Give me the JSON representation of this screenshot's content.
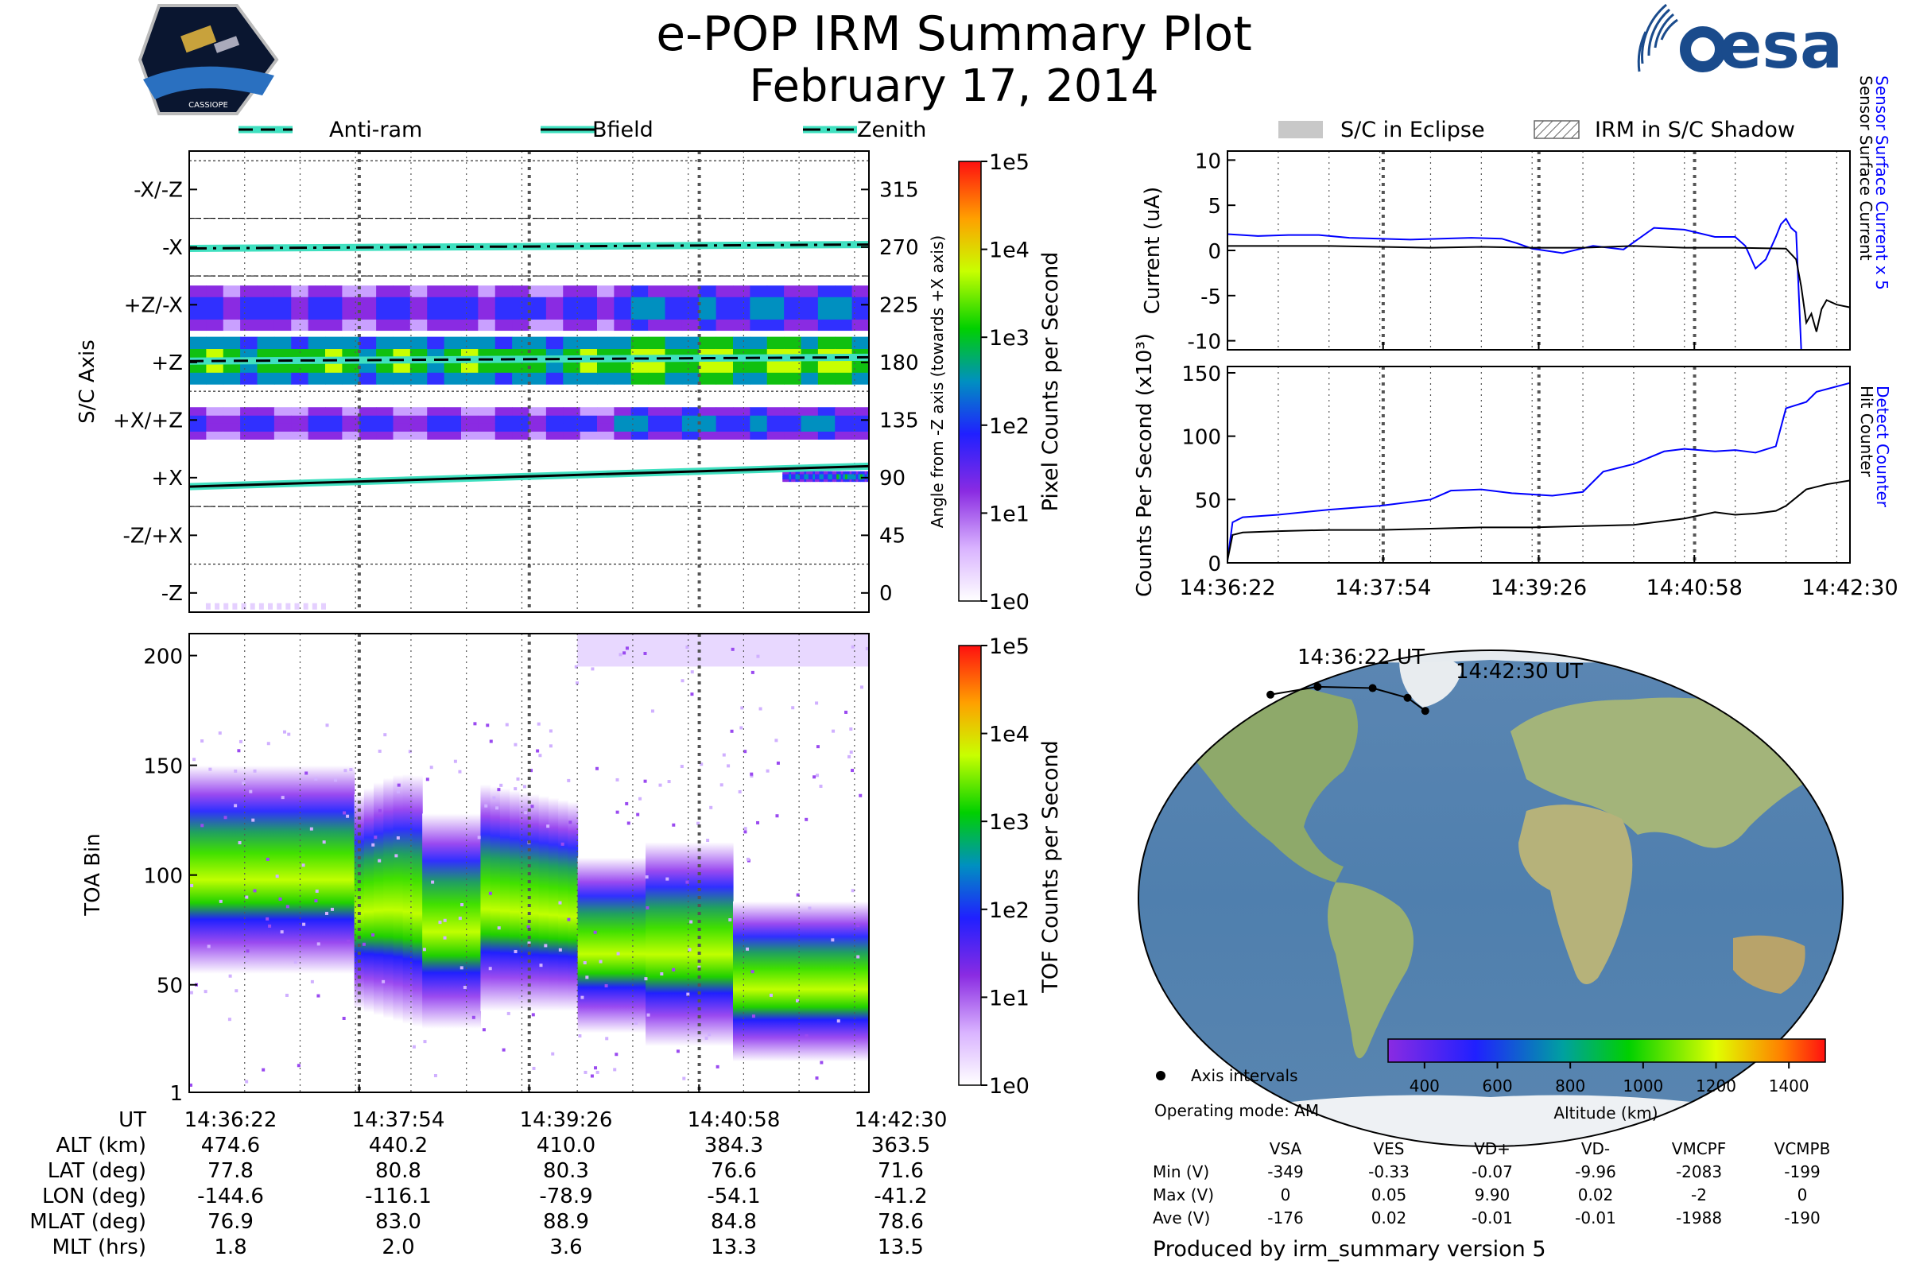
{
  "title": "e-POP IRM Summary Plot",
  "subtitle": "February 17, 2014",
  "logo_left": {
    "label": "CASSIOPE"
  },
  "logo_right": {
    "label": "esa"
  },
  "chart_data": [
    {
      "type": "heatmap",
      "name": "pixel-panel",
      "ylabel_left": "S/C Axis",
      "ylabel_right": "Angle from -Z axis (towards +X axis)",
      "ylim": [
        -15,
        345
      ],
      "axis_labels": [
        {
          "label": "-X/-Z",
          "angle": 315
        },
        {
          "label": "-X",
          "angle": 270
        },
        {
          "label": "+Z/-X",
          "angle": 225
        },
        {
          "label": "+Z",
          "angle": 180
        },
        {
          "label": "+X/+Z",
          "angle": 135
        },
        {
          "label": "+X",
          "angle": 90
        },
        {
          "label": "-Z/+X",
          "angle": 45
        },
        {
          "label": "-Z",
          "angle": 0
        }
      ],
      "right_ticks": [
        315,
        270,
        225,
        180,
        135,
        90,
        45,
        0
      ],
      "legend": [
        {
          "name": "Anti-ram",
          "style": "dashed"
        },
        {
          "name": "Bfield",
          "style": "solid"
        },
        {
          "name": "Zenith",
          "style": "dash-dot"
        }
      ],
      "lines": [
        {
          "name": "Zenith",
          "x": [
            0,
            6.13
          ],
          "y": [
            269,
            272
          ]
        },
        {
          "name": "Anti-ram",
          "x": [
            0,
            6.13
          ],
          "y": [
            181,
            184
          ]
        },
        {
          "name": "Bfield",
          "x": [
            0,
            6.13
          ],
          "y": [
            83,
            99
          ]
        }
      ],
      "bands": [
        {
          "name": "+Z core",
          "y0": 163,
          "y1": 200,
          "level": 3.2
        },
        {
          "name": "+Z/-X",
          "y0": 205,
          "y1": 240,
          "level": 1.0
        },
        {
          "name": "+X/+Z",
          "y0": 120,
          "y1": 145,
          "level": 0.9
        },
        {
          "name": "+X",
          "y0": 87,
          "y1": 95,
          "level": 1.6,
          "start": 5.35
        }
      ],
      "colorbar": {
        "label": "Pixel Counts per Second",
        "ticks": [
          "1e0",
          "1e1",
          "1e2",
          "1e3",
          "1e4",
          "1e5"
        ]
      }
    },
    {
      "type": "heatmap",
      "name": "tof-panel",
      "ylabel": "TOA Bin",
      "ylim": [
        1,
        210
      ],
      "yticks": [
        1,
        50,
        100,
        150,
        200
      ],
      "xlabel": "UT",
      "x_ticklabels": [
        "14:36:22",
        "14:37:54",
        "14:39:26",
        "14:40:58",
        "14:42:30"
      ],
      "colorbar": {
        "label": "TOF Counts per Second",
        "ticks": [
          "1e0",
          "1e1",
          "1e2",
          "1e3",
          "1e4",
          "1e5"
        ]
      }
    },
    {
      "type": "line",
      "name": "current-panel",
      "ylabel": "Current (uA)",
      "ylim": [
        -11,
        11
      ],
      "yticks": [
        10,
        5,
        0,
        -5,
        -10
      ],
      "legend": [
        {
          "name": "S/C in Eclipse",
          "style": "gray-fill"
        },
        {
          "name": "IRM in S/C Shadow",
          "style": "hatched"
        }
      ],
      "right_labels": [
        {
          "text": "Sensor Surface Current x 5",
          "color": "#0000ff"
        },
        {
          "text": "Sensor Surface Current",
          "color": "#000000"
        }
      ],
      "series": [
        {
          "name": "Sensor Surface Current x 5",
          "color": "#0000ff",
          "x": [
            0,
            0.3,
            0.6,
            0.9,
            1.2,
            1.5,
            1.8,
            2.1,
            2.4,
            2.7,
            2.85,
            3.0,
            3.3,
            3.6,
            3.9,
            4.2,
            4.5,
            4.8,
            4.9,
            5.0,
            5.1,
            5.2,
            5.3,
            5.4,
            5.45,
            5.5,
            5.55,
            5.6,
            5.65
          ],
          "y": [
            1.8,
            1.6,
            1.7,
            1.7,
            1.4,
            1.3,
            1.2,
            1.3,
            1.4,
            1.3,
            0.8,
            0.2,
            -0.3,
            0.5,
            0.1,
            2.5,
            2.3,
            1.5,
            1.5,
            1.5,
            0.5,
            -2.0,
            -1.0,
            1.5,
            2.9,
            3.5,
            2.5,
            2.0,
            -11
          ]
        },
        {
          "name": "Sensor Surface Current",
          "color": "#000000",
          "x": [
            0,
            0.5,
            1.0,
            1.5,
            2.0,
            2.5,
            3.0,
            3.5,
            4.0,
            4.5,
            5.0,
            5.5,
            5.6,
            5.65,
            5.7,
            5.75,
            5.8,
            5.85,
            5.9,
            6.0,
            6.13
          ],
          "y": [
            0.5,
            0.5,
            0.5,
            0.4,
            0.3,
            0.4,
            0.3,
            0.3,
            0.5,
            0.3,
            0.3,
            0.2,
            -1.0,
            -4.0,
            -8.0,
            -7.0,
            -9.0,
            -6.5,
            -5.5,
            -6.0,
            -6.3
          ]
        }
      ]
    },
    {
      "type": "line",
      "name": "counts-panel",
      "ylabel": "Counts Per Second (x10³)",
      "ylim": [
        0,
        155
      ],
      "yticks": [
        0,
        50,
        100,
        150
      ],
      "x_ticklabels": [
        "14:36:22",
        "14:37:54",
        "14:39:26",
        "14:40:58",
        "14:42:30"
      ],
      "right_labels": [
        {
          "text": "Detect Counter",
          "color": "#0000ff"
        },
        {
          "text": "Hit Counter",
          "color": "#000000"
        }
      ],
      "series": [
        {
          "name": "Detect Counter",
          "color": "#0000ff",
          "x": [
            0,
            0.05,
            0.15,
            0.5,
            1.0,
            1.5,
            2.0,
            2.2,
            2.5,
            2.8,
            3.2,
            3.5,
            3.7,
            4.0,
            4.3,
            4.5,
            4.8,
            5.0,
            5.2,
            5.4,
            5.5,
            5.7,
            5.8,
            6.13
          ],
          "y": [
            2,
            32,
            36,
            38,
            42,
            45,
            50,
            57,
            58,
            55,
            53,
            56,
            72,
            78,
            88,
            90,
            88,
            89,
            87,
            92,
            122,
            127,
            135,
            142
          ]
        },
        {
          "name": "Hit Counter",
          "color": "#000000",
          "x": [
            0,
            0.05,
            0.15,
            0.5,
            1.0,
            1.5,
            2.0,
            2.5,
            3.0,
            3.5,
            4.0,
            4.5,
            4.8,
            5.0,
            5.2,
            5.4,
            5.5,
            5.7,
            5.9,
            6.13
          ],
          "y": [
            2,
            22,
            24,
            25,
            26,
            26,
            27,
            28,
            28,
            29,
            30,
            35,
            40,
            38,
            39,
            41,
            45,
            58,
            62,
            65
          ]
        }
      ]
    },
    {
      "type": "scatter",
      "name": "world-map",
      "annotations": [
        "14:36:22 UT",
        "14:42:30 UT"
      ],
      "track": [
        {
          "lon": -144.6,
          "lat": 77.8
        },
        {
          "lon": -116.1,
          "lat": 80.8
        },
        {
          "lon": -78.9,
          "lat": 80.3
        },
        {
          "lon": -54.1,
          "lat": 76.6
        },
        {
          "lon": -41.2,
          "lat": 71.6
        }
      ],
      "colorbar": {
        "label": "Altitude (km)",
        "ticks": [
          "400",
          "600",
          "800",
          "1000",
          "1200",
          "1400"
        ]
      }
    }
  ],
  "ephemeris": {
    "headers": [
      "UT",
      "14:36:22",
      "14:37:54",
      "14:39:26",
      "14:40:58",
      "14:42:30"
    ],
    "rows": [
      [
        "ALT (km)",
        "474.6",
        "440.2",
        "410.0",
        "384.3",
        "363.5"
      ],
      [
        "LAT (deg)",
        "77.8",
        "80.8",
        "80.3",
        "76.6",
        "71.6"
      ],
      [
        "LON (deg)",
        "-144.6",
        "-116.1",
        "-78.9",
        "-54.1",
        "-41.2"
      ],
      [
        "MLAT (deg)",
        "76.9",
        "83.0",
        "88.9",
        "84.8",
        "78.6"
      ],
      [
        "MLT (hrs)",
        "1.8",
        "2.0",
        "3.6",
        "13.3",
        "13.5"
      ]
    ]
  },
  "info": {
    "axis_intervals": "Axis intervals",
    "operating_mode": "Operating mode: AM",
    "produced_by": "Produced by irm_summary version 5"
  },
  "voltages": {
    "headers": [
      "",
      "VSA",
      "VES",
      "VD+",
      "VD-",
      "VMCPF",
      "VCMPB"
    ],
    "rows": [
      [
        "Min (V)",
        "-349",
        "-0.33",
        "-0.07",
        "-9.96",
        "-2083",
        "-199"
      ],
      [
        "Max (V)",
        "0",
        "0.05",
        "9.90",
        "0.02",
        "-2",
        "0"
      ],
      [
        "Ave (V)",
        "-176",
        "0.02",
        "-0.01",
        "-0.01",
        "-1988",
        "-190"
      ]
    ]
  }
}
